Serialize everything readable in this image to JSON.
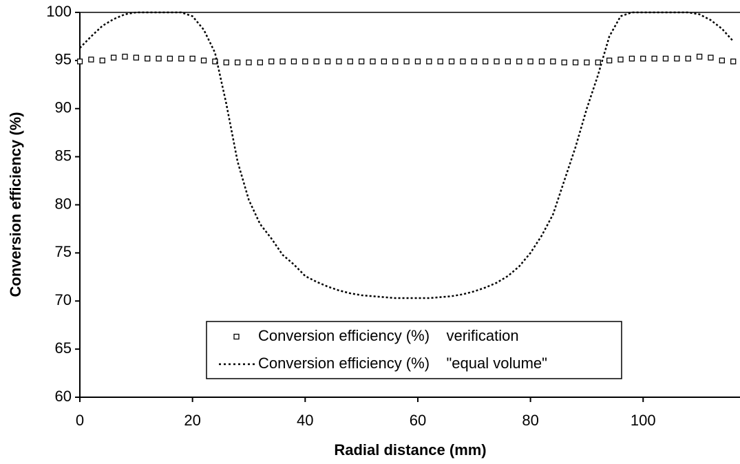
{
  "chart_data": {
    "type": "line",
    "xlabel": "Radial distance (mm)",
    "ylabel": "Conversion efficiency (%)",
    "x": [
      0,
      2,
      4,
      6,
      8,
      10,
      12,
      14,
      16,
      18,
      20,
      22,
      24,
      26,
      28,
      30,
      32,
      34,
      36,
      38,
      40,
      42,
      44,
      46,
      48,
      50,
      52,
      54,
      56,
      58,
      60,
      62,
      64,
      66,
      68,
      70,
      72,
      74,
      76,
      78,
      80,
      82,
      84,
      86,
      88,
      90,
      92,
      94,
      96,
      98,
      100,
      102,
      104,
      106,
      108,
      110,
      112,
      114,
      116
    ],
    "series": [
      {
        "name": "Conversion efficiency (%)    verification",
        "color": "#000000",
        "marker": "square",
        "values": [
          94.9,
          95.1,
          95.0,
          95.3,
          95.4,
          95.3,
          95.2,
          95.2,
          95.2,
          95.2,
          95.2,
          95.0,
          94.9,
          94.8,
          94.8,
          94.8,
          94.8,
          94.9,
          94.9,
          94.9,
          94.9,
          94.9,
          94.9,
          94.9,
          94.9,
          94.9,
          94.9,
          94.9,
          94.9,
          94.9,
          94.9,
          94.9,
          94.9,
          94.9,
          94.9,
          94.9,
          94.9,
          94.9,
          94.9,
          94.9,
          94.9,
          94.9,
          94.9,
          94.8,
          94.8,
          94.8,
          94.8,
          95.0,
          95.1,
          95.2,
          95.2,
          95.2,
          95.2,
          95.2,
          95.2,
          95.4,
          95.3,
          95.0,
          94.9
        ]
      },
      {
        "name": "Conversion efficiency (%)    \"equal volume\"",
        "color": "#000000",
        "marker": "dotted-line",
        "values": [
          96.3,
          97.5,
          98.6,
          99.3,
          99.8,
          100,
          100,
          100,
          100,
          100,
          99.6,
          98.2,
          95.8,
          90.5,
          84.5,
          80.5,
          78,
          76.5,
          74.8,
          73.8,
          72.6,
          72,
          71.5,
          71.1,
          70.8,
          70.6,
          70.5,
          70.4,
          70.3,
          70.3,
          70.3,
          70.3,
          70.4,
          70.5,
          70.7,
          71,
          71.4,
          71.9,
          72.6,
          73.6,
          75,
          76.8,
          79,
          82.5,
          86,
          90,
          93.5,
          97.5,
          99.6,
          100,
          100,
          100,
          100,
          100,
          100,
          99.8,
          99.2,
          98.3,
          97
        ]
      }
    ],
    "xlim": [
      0,
      117.2
    ],
    "xticks": [
      0,
      20,
      40,
      60,
      80,
      100
    ],
    "ylim": [
      60,
      100
    ],
    "yticks": [
      60,
      65,
      70,
      75,
      80,
      85,
      90,
      95,
      100
    ],
    "grid": false,
    "legend": "lower center"
  }
}
